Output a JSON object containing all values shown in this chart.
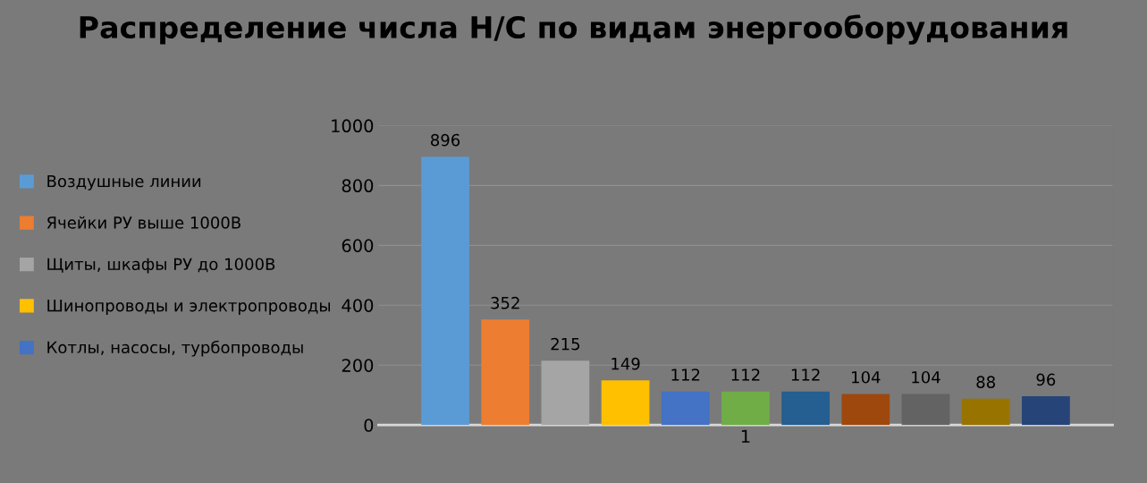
{
  "chart_data": {
    "type": "bar",
    "title": "Распределение числа Н/С по видам энергооборудования",
    "categories": [
      "1"
    ],
    "series": [
      {
        "name": "Воздушные линии",
        "color": "#5b9bd5",
        "values": [
          896
        ]
      },
      {
        "name": "Ячейки РУ выше 1000В",
        "color": "#ed7d31",
        "values": [
          352
        ]
      },
      {
        "name": "Щиты, шкафы РУ до 1000В",
        "color": "#a5a5a5",
        "values": [
          215
        ]
      },
      {
        "name": "Шинопроводы и электропроводы",
        "color": "#ffc000",
        "values": [
          149
        ]
      },
      {
        "name": "Котлы, насосы, турбопроводы",
        "color": "#4472c4",
        "values": [
          112
        ]
      },
      {
        "color": "#70ad47",
        "values": [
          112
        ]
      },
      {
        "color": "#255e91",
        "values": [
          112
        ]
      },
      {
        "color": "#9e480e",
        "values": [
          104
        ]
      },
      {
        "color": "#636363",
        "values": [
          104
        ]
      },
      {
        "color": "#997300",
        "values": [
          88
        ]
      },
      {
        "color": "#264478",
        "values": [
          96
        ]
      }
    ],
    "ylim": [
      0,
      1000
    ],
    "yticks": [
      0,
      200,
      400,
      600,
      800,
      1000
    ],
    "grid": "y",
    "legend": "left",
    "data_labels": true
  }
}
